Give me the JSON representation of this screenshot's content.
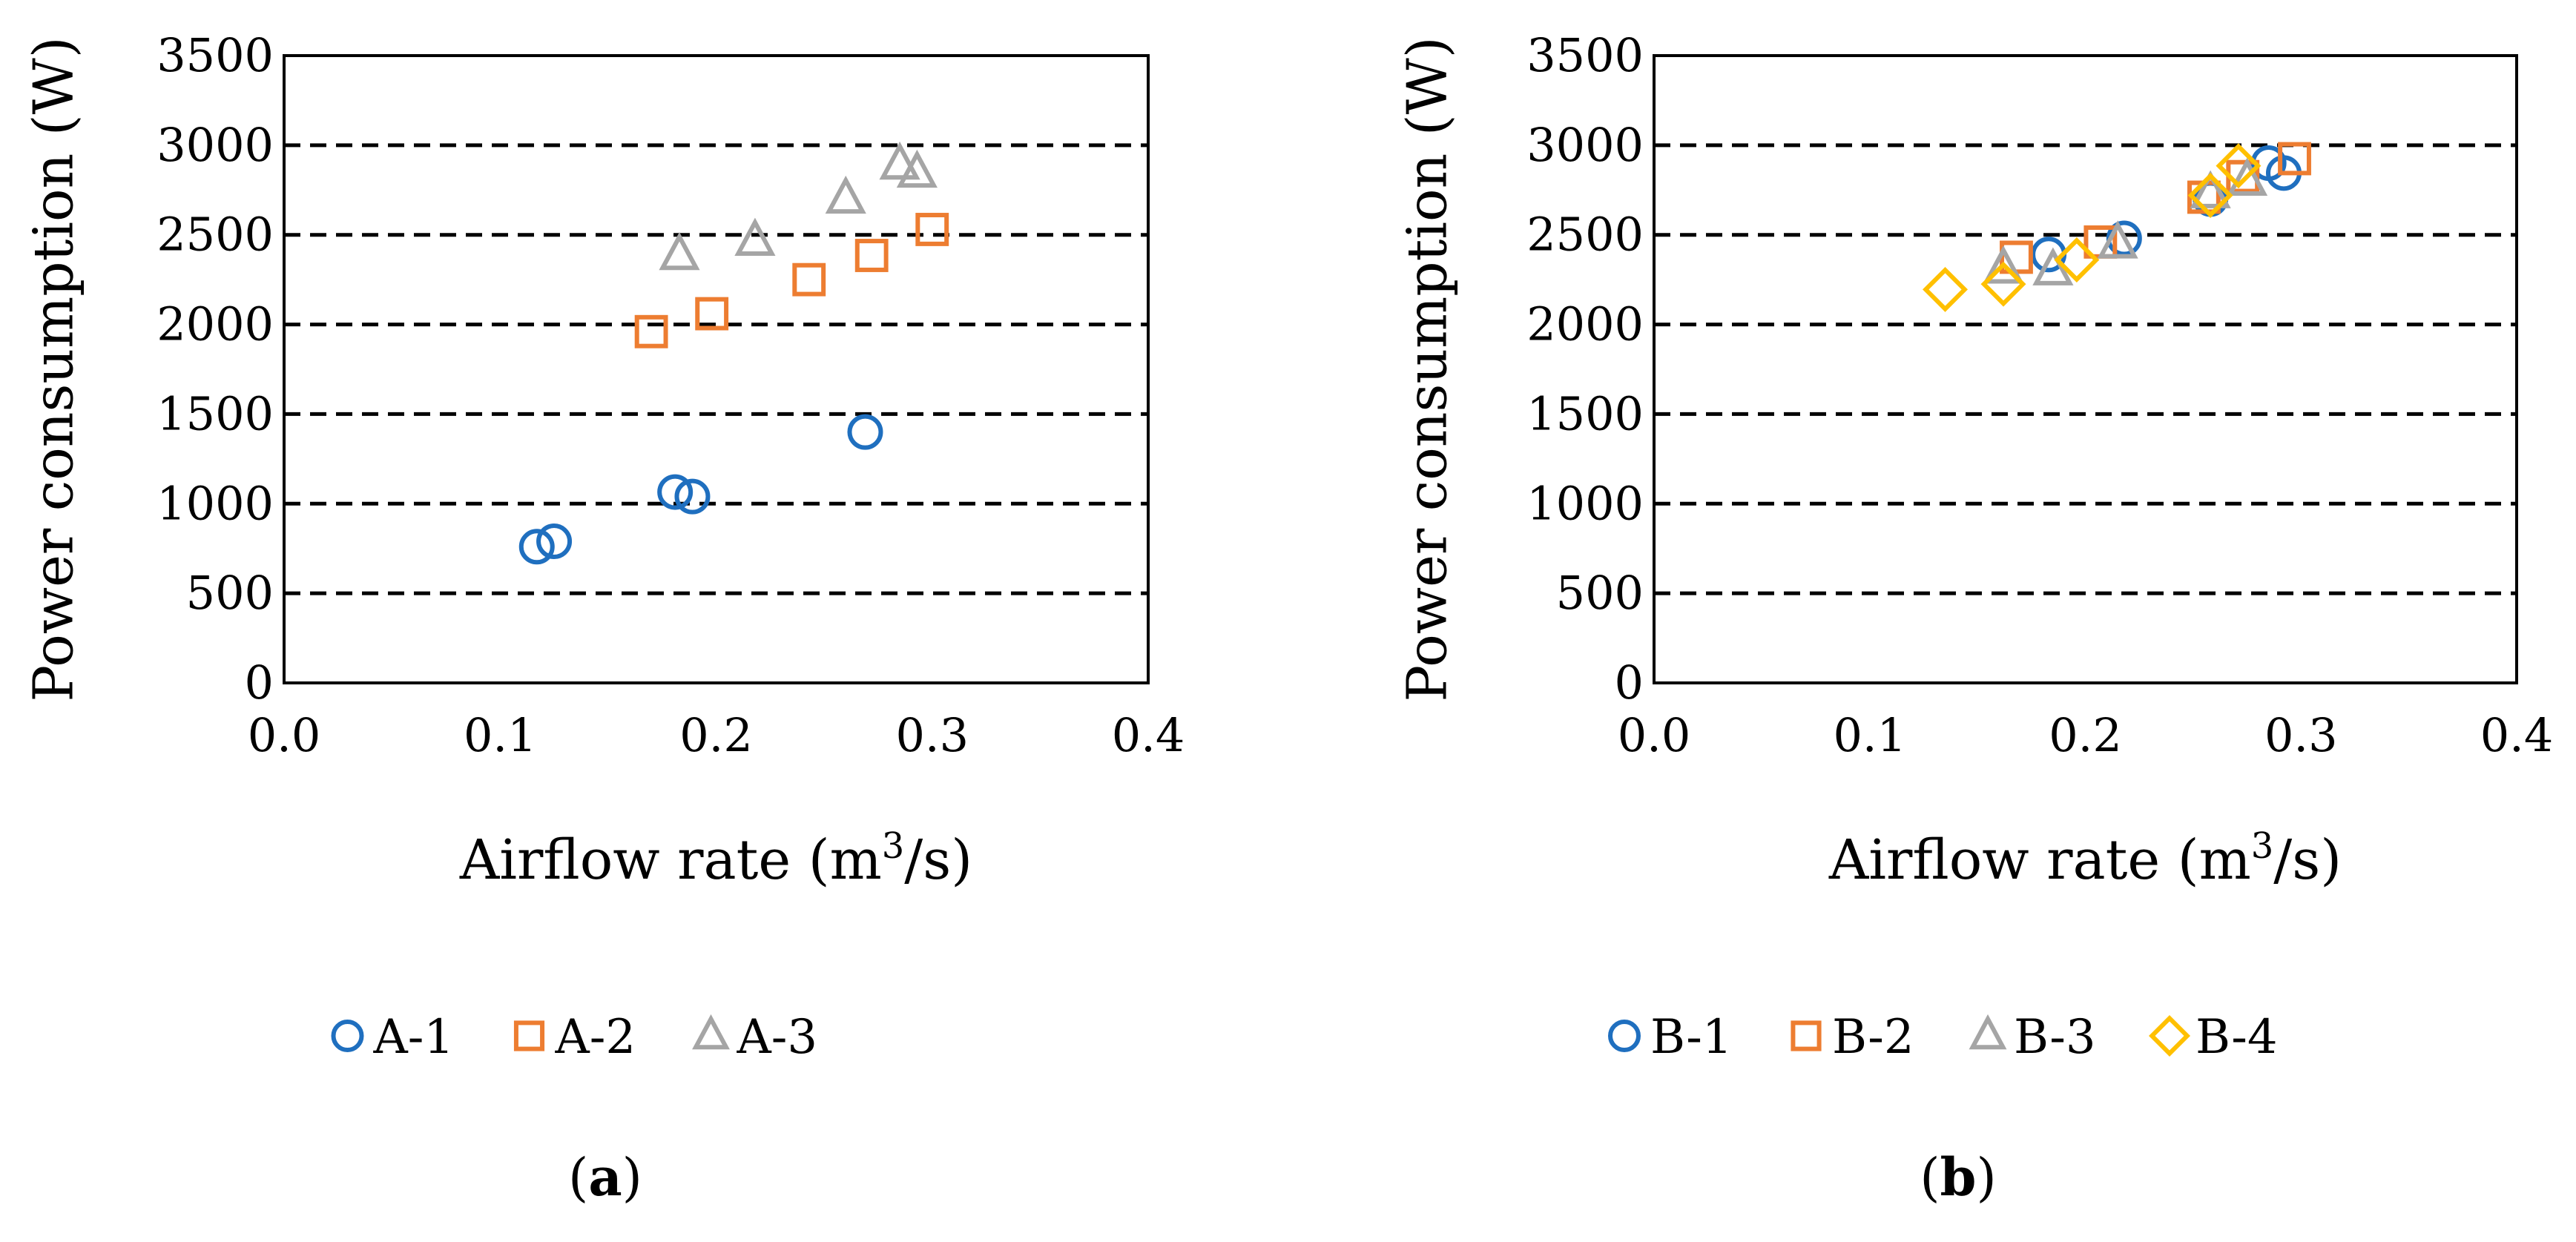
{
  "chart_data": [
    {
      "type": "scatter",
      "panel_label": "a",
      "xlabel_prefix": "Airflow rate (m",
      "xlabel_sup": "3",
      "xlabel_suffix": "/s)",
      "ylabel": "Power consumption (W)",
      "xlim": [
        0.0,
        0.4
      ],
      "ylim": [
        0,
        3500
      ],
      "xticks": [
        "0.0",
        "0.1",
        "0.2",
        "0.3",
        "0.4"
      ],
      "yticks": [
        "0",
        "500",
        "1000",
        "1500",
        "2000",
        "2500",
        "3000",
        "3500"
      ],
      "grid": "horizontal-dashed",
      "legend_position": "bottom",
      "series": [
        {
          "name": "A-1",
          "marker": "circle",
          "color": "#1f6fbf",
          "x": [
            0.117,
            0.125,
            0.181,
            0.189,
            0.269
          ],
          "y": [
            760,
            790,
            1065,
            1040,
            1400
          ]
        },
        {
          "name": "A-2",
          "marker": "square",
          "color": "#ed7d31",
          "x": [
            0.17,
            0.198,
            0.243,
            0.272,
            0.3
          ],
          "y": [
            1960,
            2060,
            2250,
            2385,
            2530
          ]
        },
        {
          "name": "A-3",
          "marker": "triangle",
          "color": "#a5a5a5",
          "x": [
            0.183,
            0.218,
            0.26,
            0.285,
            0.293
          ],
          "y": [
            2385,
            2465,
            2700,
            2890,
            2845
          ]
        }
      ]
    },
    {
      "type": "scatter",
      "panel_label": "b",
      "xlabel_prefix": "Airflow rate (m",
      "xlabel_sup": "3",
      "xlabel_suffix": "/s)",
      "ylabel": "Power consumption (W)",
      "xlim": [
        0.0,
        0.4
      ],
      "ylim": [
        0,
        3500
      ],
      "xticks": [
        "0.0",
        "0.1",
        "0.2",
        "0.3",
        "0.4"
      ],
      "yticks": [
        "0",
        "500",
        "1000",
        "1500",
        "2000",
        "2500",
        "3000",
        "3500"
      ],
      "grid": "horizontal-dashed",
      "legend_position": "bottom",
      "series": [
        {
          "name": "B-1",
          "marker": "circle",
          "color": "#1f6fbf",
          "x": [
            0.183,
            0.218,
            0.258,
            0.285,
            0.292
          ],
          "y": [
            2390,
            2480,
            2700,
            2900,
            2845
          ]
        },
        {
          "name": "B-2",
          "marker": "square",
          "color": "#ed7d31",
          "x": [
            0.168,
            0.207,
            0.255,
            0.273,
            0.297
          ],
          "y": [
            2375,
            2460,
            2710,
            2825,
            2925
          ]
        },
        {
          "name": "B-3",
          "marker": "triangle",
          "color": "#a5a5a5",
          "x": [
            0.162,
            0.185,
            0.215,
            0.258,
            0.275
          ],
          "y": [
            2310,
            2300,
            2450,
            2730,
            2800
          ]
        },
        {
          "name": "B-4",
          "marker": "diamond",
          "color": "#ffc000",
          "x": [
            0.135,
            0.162,
            0.196,
            0.258,
            0.271
          ],
          "y": [
            2195,
            2225,
            2360,
            2720,
            2885
          ]
        }
      ]
    }
  ]
}
